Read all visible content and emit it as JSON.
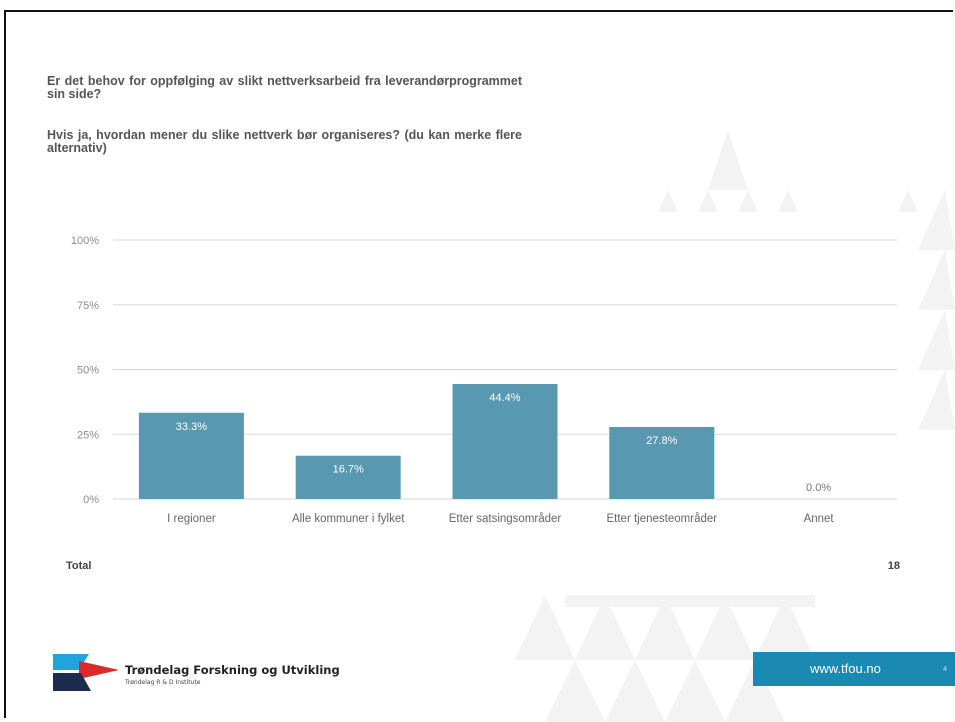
{
  "slide": {
    "question_1": "Er det behov for oppfølging av slikt nettverksarbeid fra leverandørprogrammet sin side?",
    "question_2": "Hvis ja, hvordan mener du slike nettverk bør organiseres? (du kan merke flere alternativ)",
    "total_label": "Total",
    "total_value": "18",
    "logo_text": "Trøndelag Forskning og Utvikling",
    "logo_subtext": "Trøndelag R & D Institute",
    "url": "www.tfou.no",
    "page_number": "4"
  },
  "colors": {
    "bar": "#5898b1",
    "bar_label": "#ffffff",
    "outside_label": "#777777",
    "gridline": "#d9d9d9",
    "tick_label": "#8c8c8c",
    "category_label": "#666666",
    "url_box": "#1b8ab2",
    "logo_red": "#d92b2b",
    "logo_cyan": "#1fa4dd",
    "logo_navy": "#1d2b4c"
  },
  "chart_data": {
    "type": "bar",
    "categories": [
      "I regioner",
      "Alle kommuner i fylket",
      "Etter satsingsområder",
      "Etter tjenesteområder",
      "Annet"
    ],
    "values": [
      33.3,
      16.7,
      44.4,
      27.8,
      0.0
    ],
    "data_labels": [
      "33.3%",
      "16.7%",
      "44.4%",
      "27.8%",
      "0.0%"
    ],
    "ylim": [
      0,
      100
    ],
    "yticks": [
      0,
      25,
      50,
      75,
      100
    ],
    "ytick_labels": [
      "0%",
      "25%",
      "50%",
      "75%",
      "100%"
    ],
    "grid": true,
    "legend": "none"
  }
}
